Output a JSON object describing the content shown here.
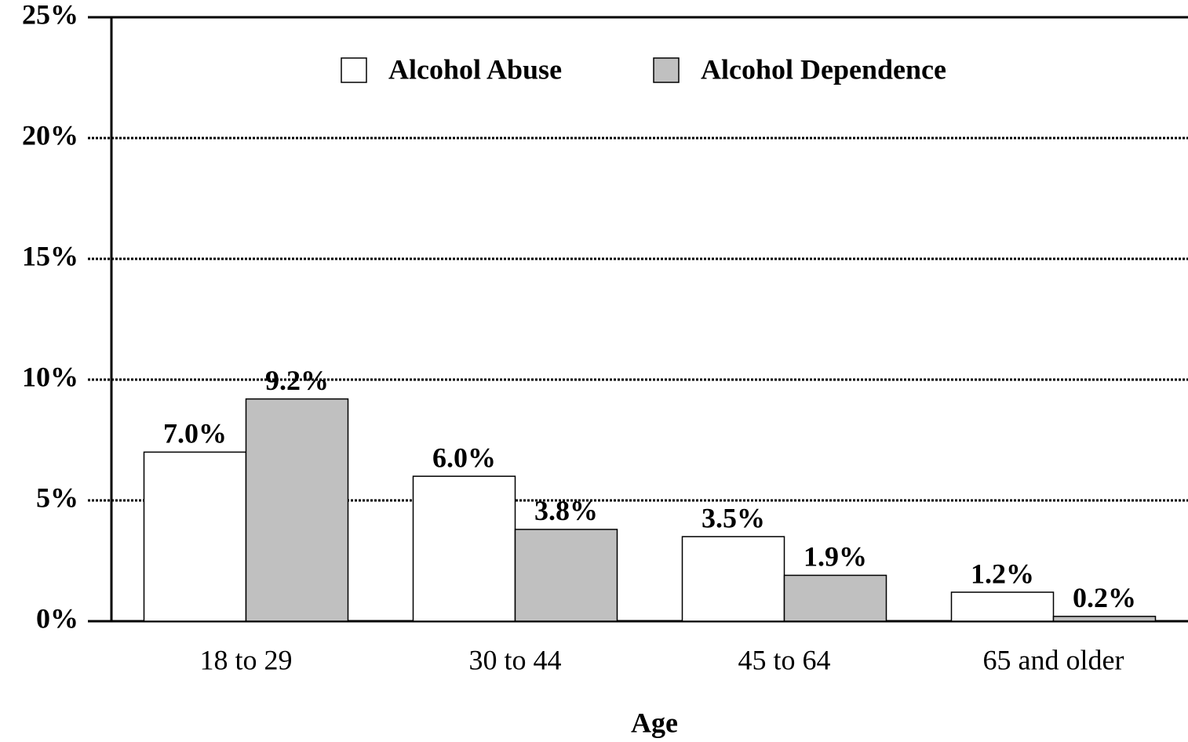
{
  "chart_data": {
    "type": "bar",
    "x_label": "Age",
    "categories": [
      "18 to 29",
      "30 to 44",
      "45 to 64",
      "65 and older"
    ],
    "series": [
      {
        "name": "Alcohol Abuse",
        "color": "#ffffff",
        "values": [
          7.0,
          6.0,
          3.5,
          1.2
        ],
        "value_labels": [
          "7.0%",
          "6.0%",
          "3.5%",
          "1.2%"
        ]
      },
      {
        "name": "Alcohol Dependence",
        "color": "#c0c0c0",
        "values": [
          9.2,
          3.8,
          1.9,
          0.2
        ],
        "value_labels": [
          "9.2%",
          "3.8%",
          "1.9%",
          "0.2%"
        ]
      }
    ],
    "ylim": [
      0,
      25
    ],
    "yticks": [
      {
        "value": 0,
        "label": "0%"
      },
      {
        "value": 5,
        "label": "5%"
      },
      {
        "value": 10,
        "label": "10%"
      },
      {
        "value": 15,
        "label": "15%"
      },
      {
        "value": 20,
        "label": "20%"
      },
      {
        "value": 25,
        "label": "25%"
      }
    ],
    "grid": true,
    "legend": "top"
  }
}
